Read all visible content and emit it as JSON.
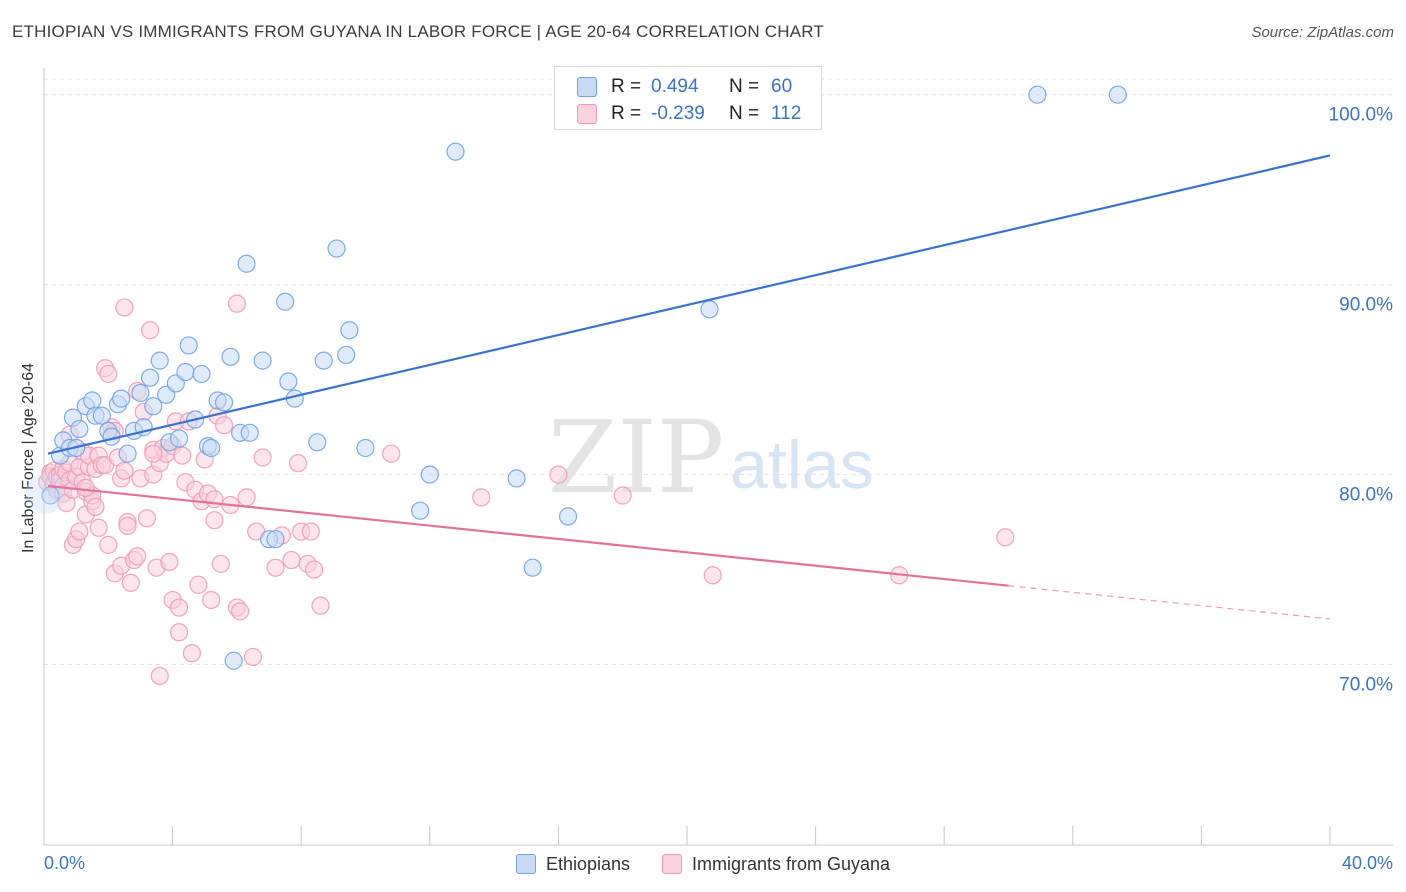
{
  "header": {
    "title": "ETHIOPIAN VS IMMIGRANTS FROM GUYANA IN LABOR FORCE | AGE 20-64 CORRELATION CHART",
    "source": "Source: ZipAtlas.com"
  },
  "watermark": {
    "zip": "ZIP",
    "atlas": "atlas"
  },
  "legend_top": [
    {
      "r_label": "R =",
      "r_value": "0.494",
      "n_label": "N =",
      "n_value": "60"
    },
    {
      "r_label": "R =",
      "r_value": "-0.239",
      "n_label": "N =",
      "n_value": "112"
    }
  ],
  "chart_data": {
    "type": "scatter",
    "title": "ETHIOPIAN VS IMMIGRANTS FROM GUYANA IN LABOR FORCE | AGE 20-64 CORRELATION CHART",
    "ylabel": "In Labor Force | Age 20-64",
    "xlabel": "",
    "xlim": [
      0,
      40
    ],
    "ylim": [
      60.5,
      101.3
    ],
    "x_tick_labels": [
      "0.0%",
      "40.0%"
    ],
    "y_ticks": [
      70,
      80,
      90,
      100
    ],
    "y_tick_labels": [
      "70.0%",
      "80.0%",
      "90.0%",
      "100.0%"
    ],
    "grid": true,
    "legend_position": "top-center",
    "series": [
      {
        "name": "Ethiopians",
        "color": "#6fa3e0",
        "r": 0.494,
        "n": 60,
        "trend": {
          "x": [
            0.0,
            40.0
          ],
          "y": [
            81.1,
            96.8
          ],
          "dashed_from": null
        },
        "points": [
          [
            0.2,
            78.9
          ],
          [
            0.5,
            81.0
          ],
          [
            0.6,
            81.8
          ],
          [
            0.8,
            81.4
          ],
          [
            0.9,
            83.0
          ],
          [
            1.1,
            82.4
          ],
          [
            1.3,
            83.6
          ],
          [
            1.5,
            83.9
          ],
          [
            1.6,
            83.1
          ],
          [
            1.8,
            83.1
          ],
          [
            2.0,
            82.3
          ],
          [
            2.1,
            82.0
          ],
          [
            2.3,
            83.7
          ],
          [
            2.4,
            84.0
          ],
          [
            2.6,
            81.1
          ],
          [
            2.8,
            82.3
          ],
          [
            3.0,
            84.3
          ],
          [
            3.1,
            82.5
          ],
          [
            3.3,
            85.1
          ],
          [
            3.4,
            83.6
          ],
          [
            3.6,
            86.0
          ],
          [
            3.8,
            84.2
          ],
          [
            3.9,
            81.7
          ],
          [
            4.1,
            84.8
          ],
          [
            4.2,
            81.9
          ],
          [
            4.4,
            85.4
          ],
          [
            4.5,
            86.8
          ],
          [
            4.7,
            82.9
          ],
          [
            4.9,
            85.3
          ],
          [
            5.1,
            81.5
          ],
          [
            5.2,
            81.4
          ],
          [
            5.4,
            83.9
          ],
          [
            5.6,
            83.8
          ],
          [
            5.8,
            86.2
          ],
          [
            5.9,
            70.2
          ],
          [
            6.1,
            82.2
          ],
          [
            6.3,
            91.1
          ],
          [
            6.4,
            82.2
          ],
          [
            6.8,
            86.0
          ],
          [
            7.0,
            76.6
          ],
          [
            7.2,
            76.6
          ],
          [
            7.5,
            89.1
          ],
          [
            7.6,
            84.9
          ],
          [
            7.8,
            84.0
          ],
          [
            8.5,
            81.7
          ],
          [
            8.7,
            86.0
          ],
          [
            9.1,
            91.9
          ],
          [
            9.4,
            86.3
          ],
          [
            9.5,
            87.6
          ],
          [
            10.0,
            81.4
          ],
          [
            11.7,
            78.1
          ],
          [
            12.0,
            80.0
          ],
          [
            12.8,
            97.0
          ],
          [
            14.7,
            79.8
          ],
          [
            15.2,
            75.1
          ],
          [
            16.3,
            77.8
          ],
          [
            20.7,
            88.7
          ],
          [
            30.9,
            100.0
          ],
          [
            33.4,
            100.0
          ],
          [
            1.0,
            81.4
          ]
        ]
      },
      {
        "name": "Immigrants from Guyana",
        "color": "#f19ab8",
        "r": -0.239,
        "n": 112,
        "trend": {
          "x": [
            0.0,
            40.0
          ],
          "y": [
            79.4,
            72.4
          ],
          "dashed_from": 30.0
        },
        "points": [
          [
            0.1,
            79.6
          ],
          [
            0.2,
            80.1
          ],
          [
            0.2,
            79.9
          ],
          [
            0.3,
            79.5
          ],
          [
            0.3,
            80.2
          ],
          [
            0.4,
            79.9
          ],
          [
            0.4,
            79.2
          ],
          [
            0.5,
            80.0
          ],
          [
            0.5,
            79.7
          ],
          [
            0.6,
            79.4
          ],
          [
            0.6,
            80.3
          ],
          [
            0.6,
            79.0
          ],
          [
            0.7,
            80.1
          ],
          [
            0.7,
            78.5
          ],
          [
            0.8,
            79.7
          ],
          [
            0.8,
            80.6
          ],
          [
            0.8,
            82.1
          ],
          [
            0.9,
            79.2
          ],
          [
            0.9,
            76.3
          ],
          [
            1.0,
            79.9
          ],
          [
            1.0,
            76.6
          ],
          [
            1.1,
            80.4
          ],
          [
            1.1,
            77.0
          ],
          [
            1.2,
            79.6
          ],
          [
            1.2,
            81.2
          ],
          [
            1.3,
            79.1
          ],
          [
            1.3,
            77.9
          ],
          [
            1.4,
            80.4
          ],
          [
            1.4,
            81.0
          ],
          [
            1.5,
            78.6
          ],
          [
            1.5,
            78.9
          ],
          [
            1.6,
            80.3
          ],
          [
            1.6,
            78.3
          ],
          [
            1.7,
            81.0
          ],
          [
            1.7,
            77.2
          ],
          [
            1.8,
            80.5
          ],
          [
            1.9,
            80.5
          ],
          [
            1.9,
            85.6
          ],
          [
            2.0,
            85.3
          ],
          [
            2.0,
            76.3
          ],
          [
            2.1,
            82.5
          ],
          [
            2.2,
            82.3
          ],
          [
            2.2,
            74.8
          ],
          [
            2.3,
            80.9
          ],
          [
            2.4,
            79.8
          ],
          [
            2.4,
            75.2
          ],
          [
            2.5,
            88.8
          ],
          [
            2.5,
            80.2
          ],
          [
            2.6,
            77.5
          ],
          [
            2.6,
            77.3
          ],
          [
            2.7,
            74.3
          ],
          [
            2.8,
            75.5
          ],
          [
            2.9,
            75.7
          ],
          [
            2.9,
            84.4
          ],
          [
            3.0,
            79.8
          ],
          [
            3.1,
            83.3
          ],
          [
            3.2,
            77.7
          ],
          [
            3.3,
            87.6
          ],
          [
            3.4,
            81.3
          ],
          [
            3.4,
            80.0
          ],
          [
            3.5,
            75.1
          ],
          [
            3.6,
            80.6
          ],
          [
            3.6,
            69.4
          ],
          [
            3.7,
            81.4
          ],
          [
            3.8,
            81.1
          ],
          [
            3.9,
            75.4
          ],
          [
            4.0,
            73.4
          ],
          [
            4.0,
            81.5
          ],
          [
            4.1,
            82.8
          ],
          [
            4.2,
            71.7
          ],
          [
            4.2,
            73.0
          ],
          [
            4.3,
            81.0
          ],
          [
            4.4,
            79.6
          ],
          [
            4.5,
            82.8
          ],
          [
            4.6,
            70.6
          ],
          [
            4.7,
            79.2
          ],
          [
            4.8,
            74.2
          ],
          [
            4.9,
            78.6
          ],
          [
            5.0,
            80.8
          ],
          [
            5.1,
            79.0
          ],
          [
            5.2,
            73.4
          ],
          [
            5.3,
            77.6
          ],
          [
            5.3,
            78.7
          ],
          [
            5.4,
            83.1
          ],
          [
            5.5,
            75.3
          ],
          [
            5.6,
            82.6
          ],
          [
            5.8,
            78.4
          ],
          [
            6.0,
            89.0
          ],
          [
            6.0,
            73.0
          ],
          [
            6.1,
            72.8
          ],
          [
            6.3,
            78.8
          ],
          [
            6.5,
            70.4
          ],
          [
            6.6,
            77.0
          ],
          [
            6.8,
            80.9
          ],
          [
            7.2,
            75.1
          ],
          [
            7.4,
            76.8
          ],
          [
            7.7,
            75.5
          ],
          [
            7.9,
            80.6
          ],
          [
            8.0,
            77.0
          ],
          [
            8.2,
            75.3
          ],
          [
            8.3,
            77.0
          ],
          [
            8.4,
            75.0
          ],
          [
            8.6,
            73.1
          ],
          [
            10.8,
            81.1
          ],
          [
            13.6,
            78.8
          ],
          [
            16.0,
            80.0
          ],
          [
            18.0,
            78.9
          ],
          [
            20.8,
            74.7
          ],
          [
            26.6,
            74.7
          ],
          [
            29.9,
            76.7
          ],
          [
            3.4,
            81.1
          ],
          [
            1.3,
            79.3
          ]
        ]
      }
    ]
  },
  "colors": {
    "ethiopians_fill": "#c7dbf5",
    "ethiopians_stroke": "#6fa3e0",
    "ethiopians_line": "#3873cf",
    "guyana_fill": "#fbd0df",
    "guyana_stroke": "#f19ab8",
    "guyana_line": "#e5709a",
    "axis_label": "#3a73c8"
  }
}
